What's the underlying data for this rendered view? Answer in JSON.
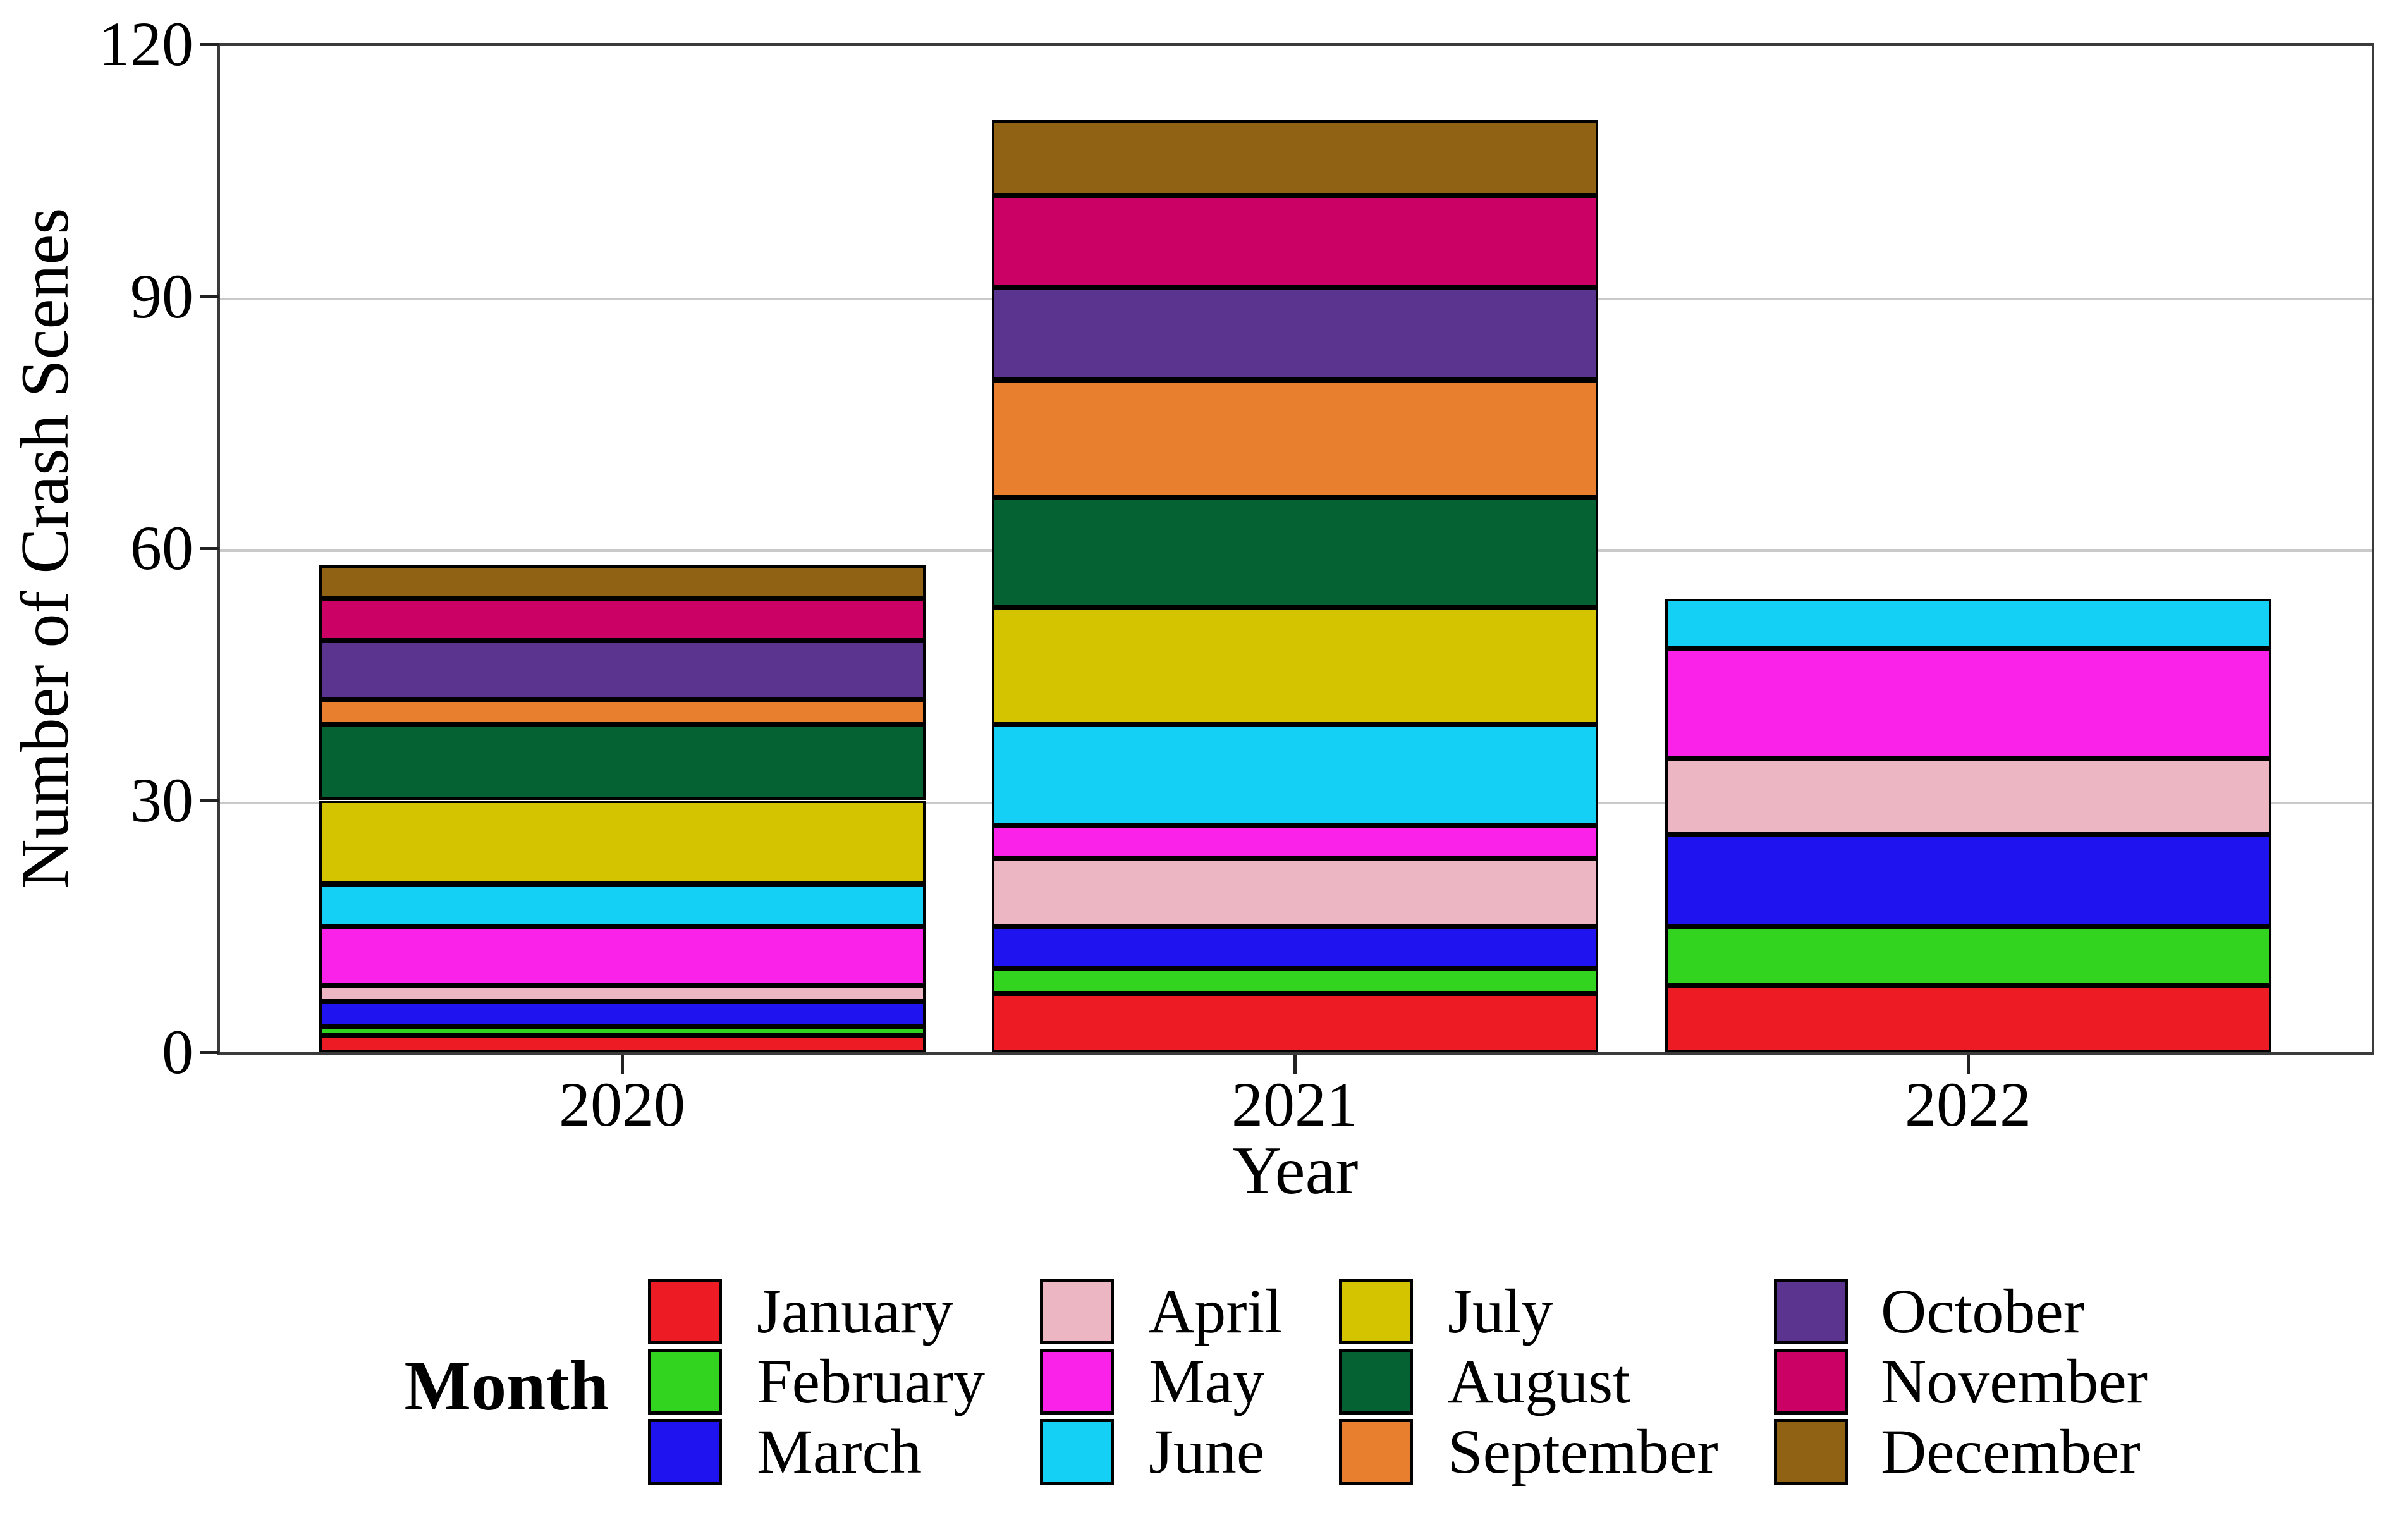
{
  "figure": {
    "y_axis": {
      "title": "Number of Crash Scenes",
      "tick_labels": [
        "0",
        "30",
        "60",
        "90",
        "120"
      ],
      "tick_values": [
        0,
        30,
        60,
        90,
        120
      ]
    },
    "x_axis": {
      "title": "Year",
      "tick_labels": [
        "2020",
        "2021",
        "2022"
      ]
    },
    "legend": {
      "title": "Month"
    }
  },
  "chart_data": {
    "type": "bar",
    "stacked": true,
    "title": "",
    "xlabel": "Year",
    "ylabel": "Number of Crash Scenes",
    "categories": [
      "2020",
      "2021",
      "2022"
    ],
    "series": [
      {
        "name": "January",
        "color": "#ED1C24",
        "values": [
          2,
          7,
          8
        ]
      },
      {
        "name": "February",
        "color": "#33D420",
        "values": [
          1,
          3,
          7
        ]
      },
      {
        "name": "March",
        "color": "#1F14EF",
        "values": [
          3,
          5,
          11
        ]
      },
      {
        "name": "April",
        "color": "#ECB6C3",
        "values": [
          2,
          8,
          9
        ]
      },
      {
        "name": "May",
        "color": "#FA22E8",
        "values": [
          7,
          4,
          13
        ]
      },
      {
        "name": "June",
        "color": "#14D0F5",
        "values": [
          5,
          12,
          6
        ]
      },
      {
        "name": "July",
        "color": "#D4C400",
        "values": [
          10,
          14,
          0
        ]
      },
      {
        "name": "August",
        "color": "#056333",
        "values": [
          9,
          13,
          0
        ]
      },
      {
        "name": "September",
        "color": "#E87F2F",
        "values": [
          3,
          14,
          0
        ]
      },
      {
        "name": "October",
        "color": "#5A348F",
        "values": [
          7,
          11,
          0
        ]
      },
      {
        "name": "November",
        "color": "#CB0166",
        "values": [
          5,
          11,
          0
        ]
      },
      {
        "name": "December",
        "color": "#906214",
        "values": [
          4,
          9,
          0
        ]
      }
    ],
    "totals": [
      58,
      111,
      54
    ],
    "ylim": [
      0,
      120
    ],
    "grid_values": [
      30,
      60,
      90
    ],
    "grid": true,
    "legend_position": "bottom"
  }
}
